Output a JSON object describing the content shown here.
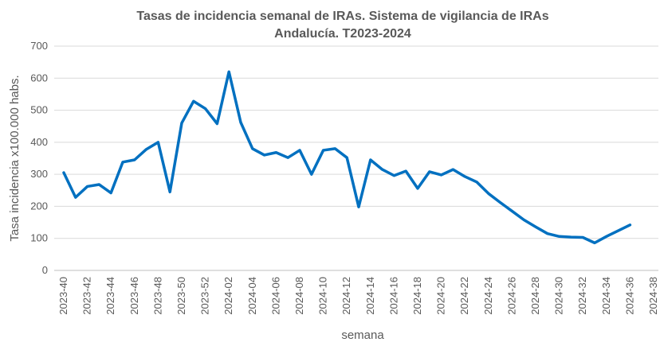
{
  "chart_data": {
    "type": "line",
    "title": [
      "Tasas de incidencia semanal de IRAs. Sistema de vigilancia de IRAs",
      "Andalucía. T2023-2024"
    ],
    "x_label": "semana",
    "y_label": "Tasa incidencia x100.000 habs.",
    "categories": [
      "2023-40",
      null,
      "2023-42",
      null,
      "2023-44",
      null,
      "2023-46",
      null,
      "2023-48",
      null,
      "2023-50",
      null,
      "2023-52",
      null,
      "2024-02",
      null,
      "2024-04",
      null,
      "2024-06",
      null,
      "2024-08",
      null,
      "2024-10",
      null,
      "2024-12",
      null,
      "2024-14",
      null,
      "2024-16",
      null,
      "2024-18",
      null,
      "2024-20",
      null,
      "2024-22",
      null,
      "2024-24",
      null,
      "2024-26",
      null,
      "2024-28",
      null,
      "2024-30",
      null,
      "2024-32",
      null,
      "2024-34",
      null,
      "2024-36",
      null,
      "2024-38"
    ],
    "series": [
      {
        "name": "Tasa",
        "color": "#0070c0",
        "values": [
          305,
          228,
          262,
          268,
          242,
          338,
          345,
          378,
          400,
          245,
          460,
          528,
          505,
          458,
          620,
          462,
          380,
          360,
          368,
          352,
          375,
          300,
          375,
          380,
          352,
          198,
          345,
          315,
          296,
          310,
          256,
          308,
          298,
          315,
          293,
          276,
          240,
          212,
          185,
          158,
          136,
          115,
          106,
          104,
          103,
          86,
          106,
          124,
          142,
          null,
          null
        ]
      }
    ],
    "ylim": [
      0,
      700
    ],
    "yticks": [
      0,
      100,
      200,
      300,
      400,
      500,
      600,
      700
    ],
    "grid": true
  }
}
